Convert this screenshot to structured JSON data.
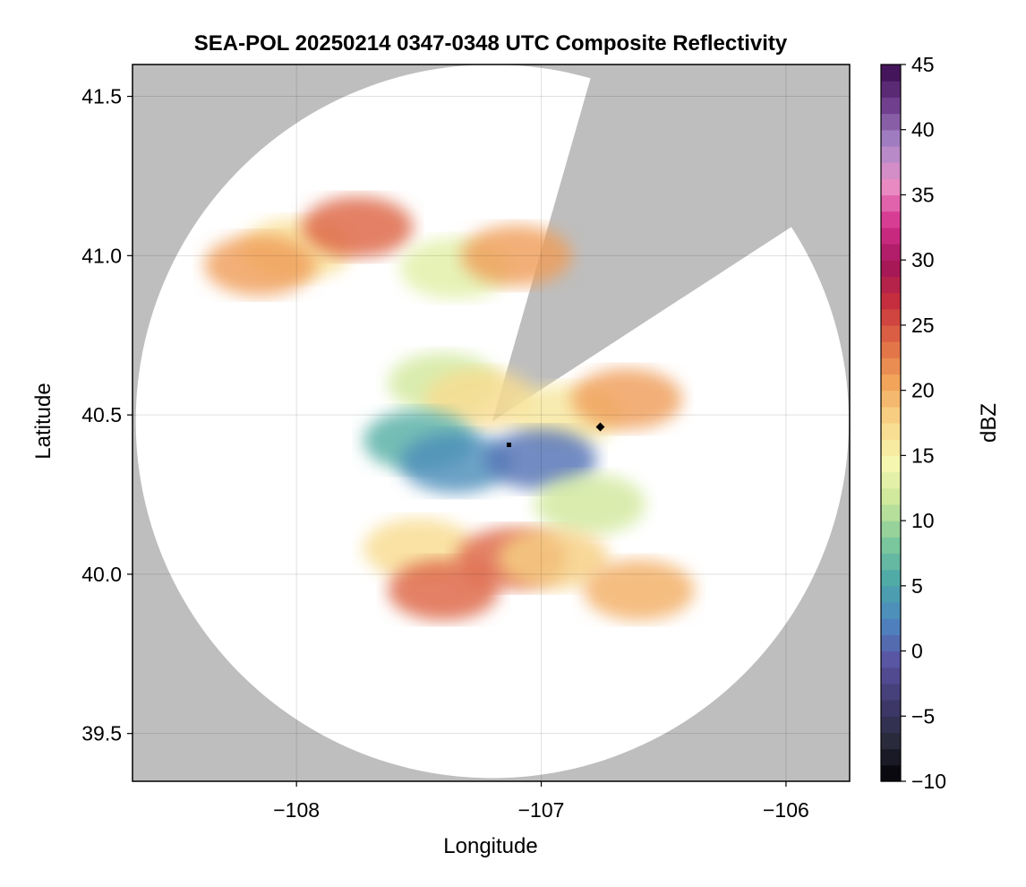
{
  "chart_data": {
    "type": "heatmap",
    "title": "SEA-POL 20250214 0347-0348 UTC Composite Reflectivity",
    "xlabel": "Longitude",
    "ylabel": "Latitude",
    "xlim": [
      -108.67,
      -105.74
    ],
    "ylim": [
      39.35,
      41.6
    ],
    "xticks": [
      -108,
      -107,
      -106
    ],
    "xtick_labels": [
      "−108",
      "−107",
      "−106"
    ],
    "yticks": [
      39.5,
      40.0,
      40.5,
      41.0,
      41.5
    ],
    "ytick_labels": [
      "39.5",
      "40.0",
      "40.5",
      "41.0",
      "41.5"
    ],
    "grid": true,
    "background_color": "#bebebe",
    "radar": {
      "center_lon": -107.2,
      "center_lat": 40.48,
      "coverage_radius_deg_lat": 1.12,
      "blocked_sectors_deg_from_north": [
        [
          16,
          57
        ]
      ]
    },
    "colorbar": {
      "label": "dBZ",
      "min": -10,
      "max": 45,
      "step": 1.25,
      "ticks": [
        -10,
        -5,
        0,
        5,
        10,
        15,
        20,
        25,
        30,
        35,
        40,
        45
      ],
      "tick_labels": [
        "−10",
        "−5",
        "0",
        "5",
        "10",
        "15",
        "20",
        "25",
        "30",
        "35",
        "40",
        "45"
      ],
      "colormap": [
        "#000004",
        "#2a2a3c",
        "#3f3a6e",
        "#5a52a2",
        "#4e86c0",
        "#4aa7a8",
        "#7dc89c",
        "#c9e69a",
        "#f6f7b0",
        "#f8d78a",
        "#f2a55c",
        "#e06d45",
        "#c8303c",
        "#a3155a",
        "#d6328e",
        "#ea90c6",
        "#a888c8",
        "#6f3e8e",
        "#3a0b4e"
      ]
    },
    "echo_regions": [
      {
        "lon": -108.0,
        "lat": 41.02,
        "dbz": 17
      },
      {
        "lon": -107.75,
        "lat": 41.09,
        "dbz": 24
      },
      {
        "lon": -108.15,
        "lat": 40.97,
        "dbz": 21
      },
      {
        "lon": -107.35,
        "lat": 40.96,
        "dbz": 13
      },
      {
        "lon": -107.1,
        "lat": 41.0,
        "dbz": 21
      },
      {
        "lon": -107.4,
        "lat": 40.6,
        "dbz": 12
      },
      {
        "lon": -107.25,
        "lat": 40.55,
        "dbz": 17
      },
      {
        "lon": -107.5,
        "lat": 40.42,
        "dbz": 6
      },
      {
        "lon": -107.35,
        "lat": 40.35,
        "dbz": 3
      },
      {
        "lon": -106.9,
        "lat": 40.5,
        "dbz": 16
      },
      {
        "lon": -106.65,
        "lat": 40.55,
        "dbz": 21
      },
      {
        "lon": -107.0,
        "lat": 40.36,
        "dbz": 1
      },
      {
        "lon": -106.8,
        "lat": 40.22,
        "dbz": 12
      },
      {
        "lon": -107.5,
        "lat": 40.08,
        "dbz": 17
      },
      {
        "lon": -107.4,
        "lat": 39.95,
        "dbz": 24
      },
      {
        "lon": -107.12,
        "lat": 40.05,
        "dbz": 24
      },
      {
        "lon": -106.95,
        "lat": 40.05,
        "dbz": 18
      },
      {
        "lon": -106.6,
        "lat": 39.95,
        "dbz": 20
      }
    ]
  }
}
